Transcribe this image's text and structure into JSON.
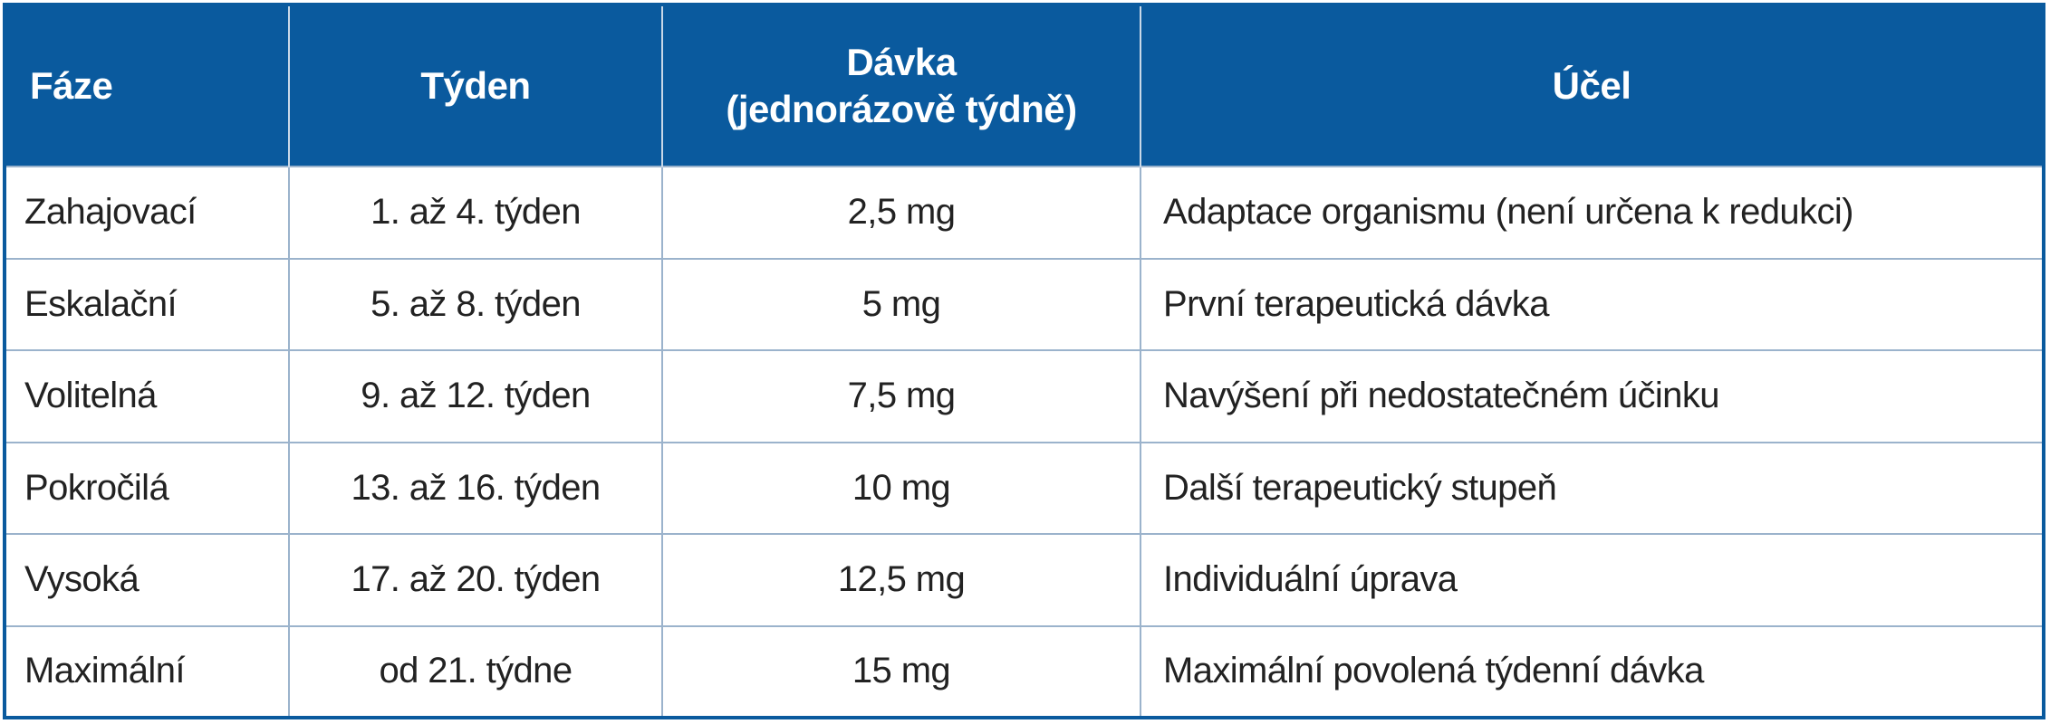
{
  "table": {
    "header": [
      "Fáze",
      "Týden",
      "Dávka\n(jednorázově týdně)",
      "Účel"
    ],
    "rows": [
      [
        "Zahajovací",
        "1. až 4. týden",
        "2,5 mg",
        "Adaptace organismu (není určena k redukci)"
      ],
      [
        "Eskalační",
        "5. až 8. týden",
        "5 mg",
        "První terapeutická dávka"
      ],
      [
        "Volitelná",
        "9. až 12. týden",
        "7,5 mg",
        "Navýšení při nedostatečném účinku"
      ],
      [
        "Pokročilá",
        "13. až 16. týden",
        "10 mg",
        "Další terapeutický stupeň"
      ],
      [
        "Vysoká",
        "17. až 20. týden",
        "12,5 mg",
        "Individuální úprava"
      ],
      [
        "Maximální",
        "od 21. týdne",
        "15 mg",
        "Maximální povolená týdenní dávka"
      ]
    ]
  }
}
